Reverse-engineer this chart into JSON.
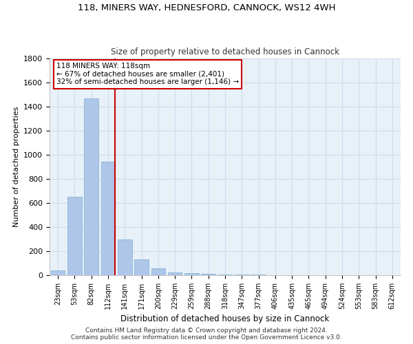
{
  "title_line1": "118, MINERS WAY, HEDNESFORD, CANNOCK, WS12 4WH",
  "title_line2": "Size of property relative to detached houses in Cannock",
  "xlabel": "Distribution of detached houses by size in Cannock",
  "ylabel": "Number of detached properties",
  "bar_categories": [
    "23sqm",
    "53sqm",
    "82sqm",
    "112sqm",
    "141sqm",
    "171sqm",
    "200sqm",
    "229sqm",
    "259sqm",
    "288sqm",
    "318sqm",
    "347sqm",
    "377sqm",
    "406sqm",
    "435sqm",
    "465sqm",
    "494sqm",
    "524sqm",
    "553sqm",
    "583sqm",
    "612sqm"
  ],
  "bar_values": [
    40,
    650,
    1470,
    940,
    295,
    130,
    60,
    22,
    18,
    12,
    8,
    5,
    3,
    2,
    2,
    1,
    1,
    0,
    0,
    0,
    0
  ],
  "bar_color": "#aec6e8",
  "bar_edge_color": "#7aafd4",
  "vline_color": "#cc0000",
  "annotation_line1": "118 MINERS WAY: 118sqm",
  "annotation_line2": "← 67% of detached houses are smaller (2,401)",
  "annotation_line3": "32% of semi-detached houses are larger (1,146) →",
  "annotation_box_color": "#cc0000",
  "ylim": [
    0,
    1800
  ],
  "yticks": [
    0,
    200,
    400,
    600,
    800,
    1000,
    1200,
    1400,
    1600,
    1800
  ],
  "grid_color": "#ccddee",
  "background_color": "#e8f0f8",
  "footer_text": "Contains HM Land Registry data © Crown copyright and database right 2024.\nContains public sector information licensed under the Open Government Licence v3.0."
}
